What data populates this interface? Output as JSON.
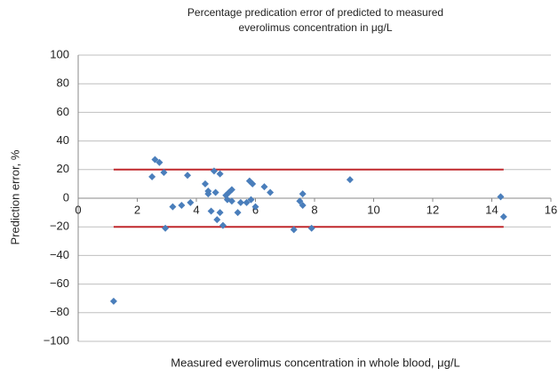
{
  "chart_data": {
    "type": "scatter",
    "title": [
      "Percentage predication error of predicted to measured",
      "everolimus concentration in μg/L"
    ],
    "x_label": "Measured everolimus concentration in whole blood, μg/L",
    "y_label": "Prediction error, %",
    "color": "#4a7ebb",
    "x": [
      1.2,
      2.5,
      2.6,
      2.75,
      2.9,
      2.95,
      3.2,
      3.5,
      3.7,
      3.8,
      4.3,
      4.4,
      4.4,
      4.5,
      4.6,
      4.65,
      4.7,
      4.8,
      4.8,
      4.9,
      5.0,
      5.05,
      5.1,
      5.2,
      5.2,
      5.4,
      5.5,
      5.7,
      5.8,
      5.85,
      5.9,
      6.0,
      6.3,
      6.5,
      7.3,
      7.5,
      7.6,
      7.6,
      7.9,
      9.2,
      14.3,
      14.4
    ],
    "values": [
      -72,
      15,
      27,
      25,
      18,
      -21,
      -6,
      -5,
      16,
      -3,
      10,
      5,
      3,
      -9,
      19,
      4,
      -15,
      -10,
      17,
      -19,
      2,
      -1,
      4,
      6,
      -2,
      -10,
      -3,
      -3,
      12,
      -1,
      10,
      -6,
      8,
      4,
      -22,
      -2,
      3,
      -5,
      -21,
      13,
      1,
      -13
    ],
    "reference_lines": [
      {
        "y": 20,
        "x": [
          1.2,
          14.4
        ]
      },
      {
        "y": -20,
        "x": [
          1.2,
          14.4
        ]
      }
    ],
    "reference_color": "#c0282d",
    "xlim": [
      0,
      16
    ],
    "xticks": [
      0,
      2,
      4,
      6,
      8,
      10,
      12,
      14,
      16
    ],
    "ylim": [
      -100,
      100
    ],
    "yticks": [
      {
        "value": -100,
        "label": "−100"
      },
      {
        "value": -80,
        "label": "−80"
      },
      {
        "value": -60,
        "label": "−60"
      },
      {
        "value": -40,
        "label": "−40"
      },
      {
        "value": -20,
        "label": "−20"
      },
      0,
      20,
      40,
      60,
      80,
      100
    ],
    "grid": true
  }
}
